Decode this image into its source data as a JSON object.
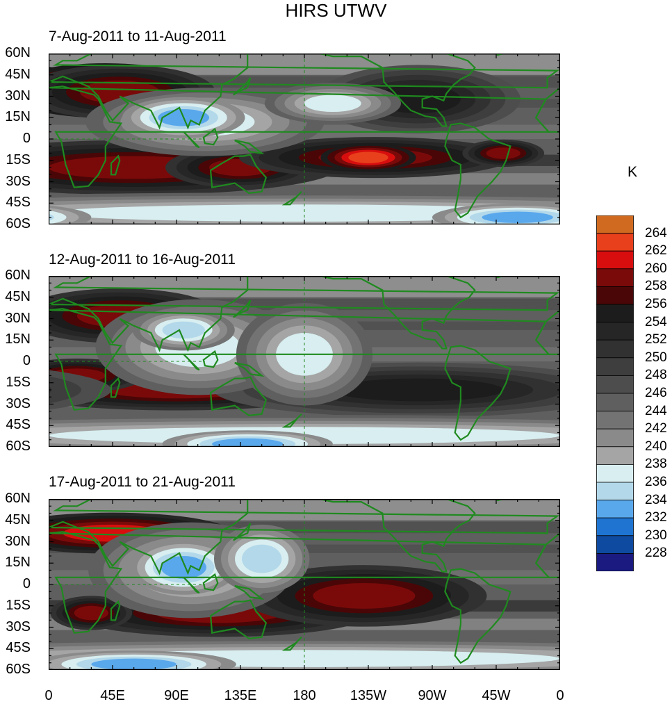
{
  "title": "HIRS UTWV",
  "unit_label": "K",
  "chart_data": {
    "type": "heatmap",
    "title": "HIRS UTWV",
    "colorbar_label": "K",
    "x_ticks": [
      "0",
      "45E",
      "90E",
      "135E",
      "180",
      "135W",
      "90W",
      "45W",
      "0"
    ],
    "y_ticks": [
      "60N",
      "45N",
      "30N",
      "15N",
      "0",
      "15S",
      "30S",
      "45S",
      "60S"
    ],
    "colorbar_levels": [
      264,
      262,
      260,
      258,
      256,
      254,
      252,
      250,
      248,
      246,
      244,
      242,
      240,
      238,
      236,
      234,
      232,
      230,
      228
    ],
    "colorbar_colors": [
      "#d06a20",
      "#e8401c",
      "#d80e0e",
      "#7a0a0a",
      "#4a0606",
      "#1c1c1c",
      "#262626",
      "#313131",
      "#3e3e3e",
      "#4d4d4d",
      "#5f5f5f",
      "#737373",
      "#8a8a8a",
      "#a5a5a5",
      "#d8eef0",
      "#b2d8ea",
      "#5aa8ec",
      "#1e74d0",
      "#0e4aa0",
      "#1a1a80"
    ],
    "panels": [
      {
        "title": "7-Aug-2011 to 11-Aug-2011",
        "features": [
          {
            "kind": "high",
            "level": 262,
            "lon": 40,
            "lat": 34,
            "dlon": 30,
            "dlat": 8
          },
          {
            "kind": "high",
            "level": 258,
            "lon": 50,
            "lat": 33,
            "dlon": 28,
            "dlat": 8
          },
          {
            "kind": "high",
            "level": 258,
            "lon": 60,
            "lat": -20,
            "dlon": 60,
            "dlat": 8
          },
          {
            "kind": "high",
            "level": 258,
            "lon": 135,
            "lat": -20,
            "dlon": 22,
            "dlat": 6
          },
          {
            "kind": "high",
            "level": 258,
            "lon": 230,
            "lat": -13,
            "dlon": 40,
            "dlat": 6
          },
          {
            "kind": "high",
            "level": 262,
            "lon": 225,
            "lat": -13,
            "dlon": 14,
            "dlat": 4
          },
          {
            "kind": "high",
            "level": 258,
            "lon": 320,
            "lat": -10,
            "dlon": 12,
            "dlat": 4
          },
          {
            "kind": "high",
            "level": 254,
            "lon": 260,
            "lat": 28,
            "dlon": 30,
            "dlat": 10
          },
          {
            "kind": "low",
            "level": 236,
            "lon": 110,
            "lat": 12,
            "dlon": 35,
            "dlat": 10
          },
          {
            "kind": "low",
            "level": 232,
            "lon": 95,
            "lat": 15,
            "dlon": 18,
            "dlat": 6
          },
          {
            "kind": "low",
            "level": 236,
            "lon": 200,
            "lat": 25,
            "dlon": 20,
            "dlat": 6
          },
          {
            "kind": "low",
            "level": 236,
            "lon": 180,
            "lat": -52,
            "dlon": 180,
            "dlat": 6
          },
          {
            "kind": "low",
            "level": 232,
            "lon": 330,
            "lat": -55,
            "dlon": 25,
            "dlat": 4
          }
        ]
      },
      {
        "title": "12-Aug-2011 to 16-Aug-2011",
        "features": [
          {
            "kind": "high",
            "level": 262,
            "lon": 45,
            "lat": 32,
            "dlon": 28,
            "dlat": 7
          },
          {
            "kind": "high",
            "level": 258,
            "lon": 50,
            "lat": 32,
            "dlon": 30,
            "dlat": 8
          },
          {
            "kind": "high",
            "level": 258,
            "lon": 90,
            "lat": -20,
            "dlon": 50,
            "dlat": 6
          },
          {
            "kind": "high",
            "level": 258,
            "lon": 20,
            "lat": -10,
            "dlon": 20,
            "dlat": 5
          },
          {
            "kind": "high",
            "level": 258,
            "lon": 203,
            "lat": -8,
            "dlon": 10,
            "dlat": 4
          },
          {
            "kind": "high",
            "level": 254,
            "lon": 260,
            "lat": -20,
            "dlon": 60,
            "dlat": 8
          },
          {
            "kind": "low",
            "level": 236,
            "lon": 105,
            "lat": 10,
            "dlon": 30,
            "dlat": 14
          },
          {
            "kind": "low",
            "level": 234,
            "lon": 95,
            "lat": 22,
            "dlon": 15,
            "dlat": 6
          },
          {
            "kind": "low",
            "level": 236,
            "lon": 180,
            "lat": 5,
            "dlon": 20,
            "dlat": 15
          },
          {
            "kind": "low",
            "level": 236,
            "lon": 180,
            "lat": -52,
            "dlon": 180,
            "dlat": 6
          },
          {
            "kind": "low",
            "level": 232,
            "lon": 140,
            "lat": -58,
            "dlon": 25,
            "dlat": 4
          }
        ]
      },
      {
        "title": "17-Aug-2011 to 21-Aug-2011",
        "features": [
          {
            "kind": "high",
            "level": 260,
            "lon": 45,
            "lat": 36,
            "dlon": 35,
            "dlat": 6
          },
          {
            "kind": "high",
            "level": 258,
            "lon": 120,
            "lat": -20,
            "dlon": 45,
            "dlat": 7
          },
          {
            "kind": "high",
            "level": 258,
            "lon": 30,
            "lat": -20,
            "dlon": 12,
            "dlat": 5
          },
          {
            "kind": "high",
            "level": 262,
            "lon": 220,
            "lat": -8,
            "dlon": 30,
            "dlat": 7
          },
          {
            "kind": "high",
            "level": 258,
            "lon": 222,
            "lat": -8,
            "dlon": 36,
            "dlat": 9
          },
          {
            "kind": "low",
            "level": 236,
            "lon": 100,
            "lat": 10,
            "dlon": 30,
            "dlat": 14
          },
          {
            "kind": "low",
            "level": 232,
            "lon": 95,
            "lat": 12,
            "dlon": 16,
            "dlat": 8
          },
          {
            "kind": "low",
            "level": 234,
            "lon": 150,
            "lat": 18,
            "dlon": 14,
            "dlat": 10
          },
          {
            "kind": "low",
            "level": 236,
            "lon": 180,
            "lat": -52,
            "dlon": 180,
            "dlat": 6
          },
          {
            "kind": "low",
            "level": 232,
            "lon": 60,
            "lat": -56,
            "dlon": 30,
            "dlat": 4
          }
        ]
      }
    ]
  },
  "colors": {
    "coast": "#1f8a1f",
    "background_gray": "#5b5b5b"
  }
}
